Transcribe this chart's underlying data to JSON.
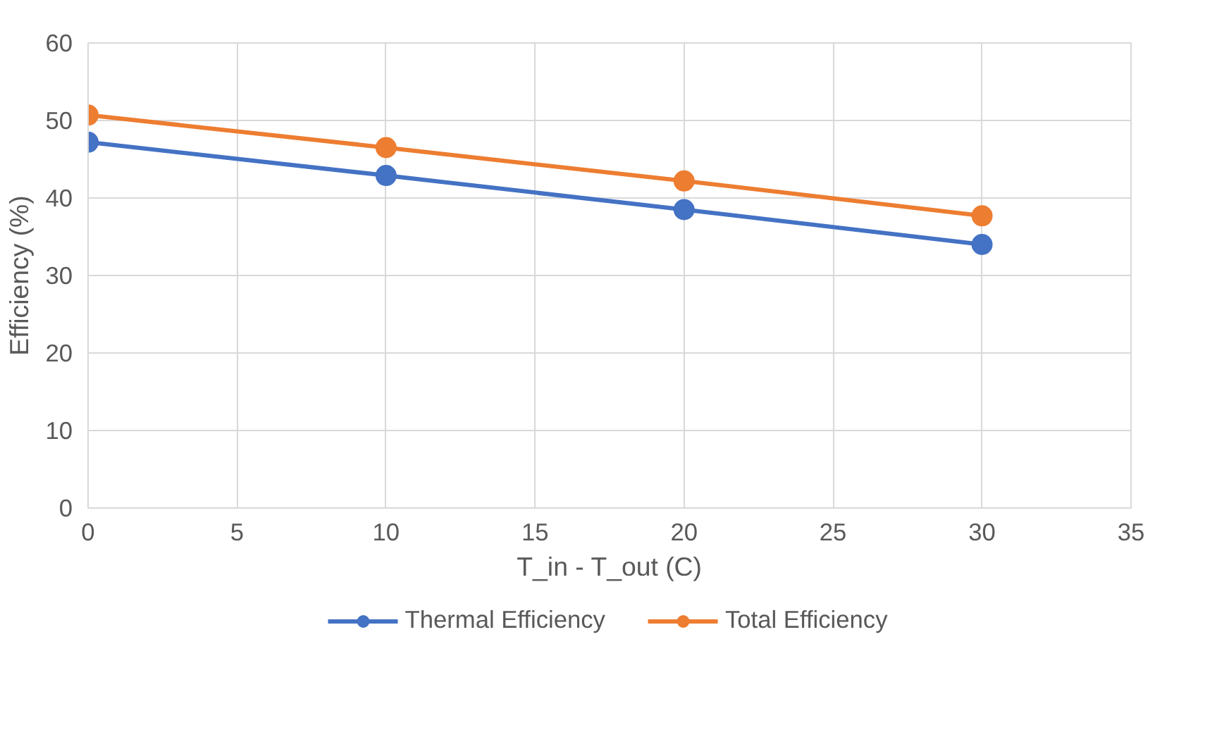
{
  "chart_data": {
    "type": "line",
    "xlabel": "T_in - T_out (C)",
    "ylabel": "Efficiency (%)",
    "x": [
      0,
      10,
      20,
      30
    ],
    "series": [
      {
        "name": "Thermal Efficiency",
        "color": "#4472c4",
        "values": [
          47.2,
          42.9,
          38.5,
          34.0
        ]
      },
      {
        "name": "Total Efficiency",
        "color": "#ed7d31",
        "values": [
          50.7,
          46.5,
          42.2,
          37.7
        ]
      }
    ],
    "xlim": [
      0,
      35
    ],
    "xticks": [
      0,
      5,
      10,
      15,
      20,
      25,
      30,
      35
    ],
    "ylim": [
      0,
      60
    ],
    "yticks": [
      0,
      10,
      20,
      30,
      40,
      50,
      60
    ],
    "grid": true,
    "legend": "bottom",
    "marker": "circle",
    "line_style": "solid"
  }
}
